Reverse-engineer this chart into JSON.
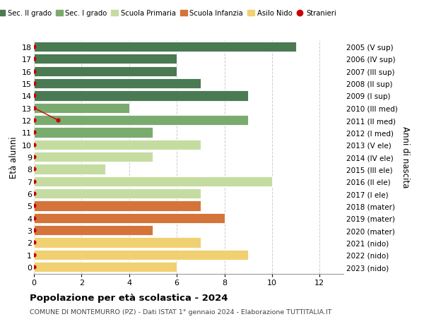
{
  "ages": [
    18,
    17,
    16,
    15,
    14,
    13,
    12,
    11,
    10,
    9,
    8,
    7,
    6,
    5,
    4,
    3,
    2,
    1,
    0
  ],
  "years": [
    "2005 (V sup)",
    "2006 (IV sup)",
    "2007 (III sup)",
    "2008 (II sup)",
    "2009 (I sup)",
    "2010 (III med)",
    "2011 (II med)",
    "2012 (I med)",
    "2013 (V ele)",
    "2014 (IV ele)",
    "2015 (III ele)",
    "2016 (II ele)",
    "2017 (I ele)",
    "2018 (mater)",
    "2019 (mater)",
    "2020 (mater)",
    "2021 (nido)",
    "2022 (nido)",
    "2023 (nido)"
  ],
  "values": [
    11,
    6,
    6,
    7,
    9,
    4,
    9,
    5,
    7,
    5,
    3,
    10,
    7,
    7,
    8,
    5,
    7,
    9,
    6
  ],
  "bar_colors": [
    "#4a7a52",
    "#4a7a52",
    "#4a7a52",
    "#4a7a52",
    "#4a7a52",
    "#7aab6e",
    "#7aab6e",
    "#7aab6e",
    "#c5dca0",
    "#c5dca0",
    "#c5dca0",
    "#c5dca0",
    "#c5dca0",
    "#d4743a",
    "#d4743a",
    "#d4743a",
    "#f0d070",
    "#f0d070",
    "#f0d070"
  ],
  "stranieri_color": "#cc0000",
  "legend_labels": [
    "Sec. II grado",
    "Sec. I grado",
    "Scuola Primaria",
    "Scuola Infanzia",
    "Asilo Nido",
    "Stranieri"
  ],
  "legend_colors": [
    "#4a7a52",
    "#7aab6e",
    "#c5dca0",
    "#d4743a",
    "#f0d070",
    "#cc0000"
  ],
  "title": "Popolazione per età scolastica - 2024",
  "subtitle": "COMUNE DI MONTEMURRO (PZ) - Dati ISTAT 1° gennaio 2024 - Elaborazione TUTTITALIA.IT",
  "ylabel_left": "Età alunni",
  "ylabel_right": "Anni di nascita",
  "xlim": [
    0,
    13
  ],
  "xticks": [
    0,
    2,
    4,
    6,
    8,
    10,
    12
  ],
  "bar_height": 0.82,
  "grid_color": "#cccccc"
}
